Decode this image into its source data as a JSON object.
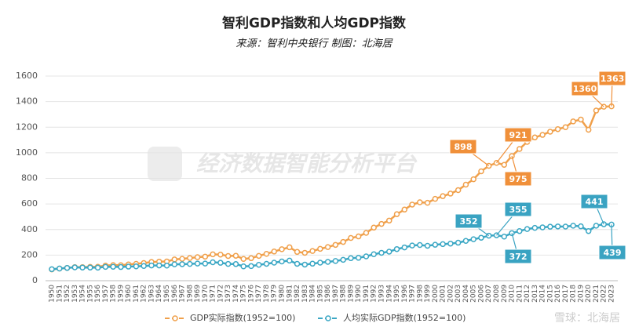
{
  "chart_data": {
    "type": "line",
    "title": "智利GDP指数和人均GDP指数",
    "subtitle": "来源：智利中央银行 制图：北海居",
    "watermark": "经济数据智能分析平台",
    "watermark_2": "雪球：北海居",
    "categories": [
      "1950",
      "1951",
      "1952",
      "1953",
      "1954",
      "1955",
      "1956",
      "1957",
      "1958",
      "1959",
      "1960",
      "1961",
      "1962",
      "1963",
      "1964",
      "1965",
      "1966",
      "1967",
      "1968",
      "1969",
      "1970",
      "1971",
      "1972",
      "1973",
      "1974",
      "1975",
      "1976",
      "1977",
      "1978",
      "1979",
      "1980",
      "1981",
      "1982",
      "1983",
      "1984",
      "1985",
      "1986",
      "1987",
      "1988",
      "1989",
      "1990",
      "1991",
      "1992",
      "1993",
      "1994",
      "1995",
      "1996",
      "1997",
      "1998",
      "1999",
      "2000",
      "2001",
      "2002",
      "2003",
      "2004",
      "2005",
      "2006",
      "2007",
      "2008",
      "2009",
      "2010",
      "2011",
      "2012",
      "2013",
      "2014",
      "2015",
      "2016",
      "2017",
      "2018",
      "2019",
      "2020",
      "2021",
      "2022",
      "2023"
    ],
    "series": [
      {
        "name": "GDP实际指数(1952=100)",
        "color": "#f0a04b",
        "label_color": "#f0903a",
        "values": [
          88,
          95,
          100,
          106,
          106,
          108,
          109,
          118,
          122,
          121,
          127,
          132,
          138,
          146,
          149,
          150,
          166,
          171,
          177,
          184,
          188,
          206,
          204,
          193,
          195,
          170,
          176,
          194,
          210,
          228,
          246,
          261,
          225,
          218,
          232,
          249,
          263,
          280,
          303,
          334,
          346,
          374,
          415,
          444,
          470,
          520,
          556,
          595,
          613,
          609,
          640,
          661,
          681,
          708,
          751,
          793,
          855,
          898,
          921,
          906,
          975,
          1030,
          1085,
          1120,
          1140,
          1165,
          1185,
          1200,
          1245,
          1260,
          1180,
          1330,
          1360,
          1363
        ],
        "labeled_points": [
          57,
          58,
          60,
          72,
          73
        ]
      },
      {
        "name": "人均实际GDP指数(1952=100)",
        "color": "#3ba7c4",
        "label_color": "#3aa3c2",
        "values": [
          90,
          95,
          100,
          104,
          103,
          103,
          102,
          108,
          109,
          107,
          110,
          112,
          115,
          119,
          119,
          118,
          128,
          129,
          131,
          134,
          134,
          144,
          140,
          131,
          130,
          112,
          114,
          124,
          132,
          141,
          150,
          157,
          132,
          126,
          133,
          141,
          147,
          154,
          163,
          176,
          179,
          190,
          207,
          218,
          227,
          247,
          260,
          275,
          279,
          273,
          281,
          286,
          290,
          297,
          311,
          324,
          336,
          352,
          355,
          345,
          372,
          388,
          404,
          413,
          417,
          422,
          424,
          423,
          430,
          425,
          388,
          430,
          441,
          439
        ],
        "labeled_points": [
          57,
          58,
          60,
          72,
          73
        ]
      }
    ],
    "ylim": [
      0,
      1600
    ],
    "yticks": [
      0,
      200,
      400,
      600,
      800,
      1000,
      1200,
      1400,
      1600
    ],
    "grid": true
  }
}
